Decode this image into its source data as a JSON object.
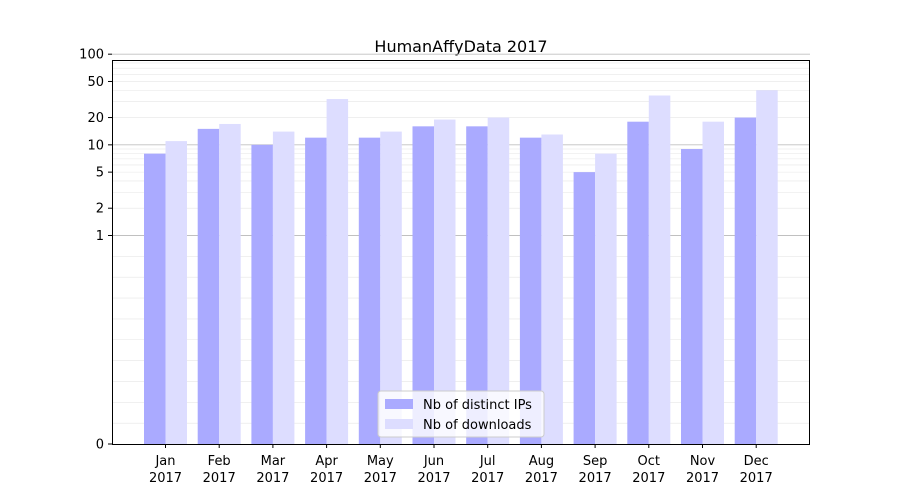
{
  "chart_data": {
    "type": "bar",
    "title": "HumanAffyData 2017",
    "xlabel": "",
    "ylabel": "",
    "yscale": "symlog",
    "ylim": [
      0,
      130
    ],
    "yticks": [
      0,
      1,
      2,
      5,
      10,
      20,
      50,
      100
    ],
    "categories": [
      [
        "Jan",
        "2017"
      ],
      [
        "Feb",
        "2017"
      ],
      [
        "Mar",
        "2017"
      ],
      [
        "Apr",
        "2017"
      ],
      [
        "May",
        "2017"
      ],
      [
        "Jun",
        "2017"
      ],
      [
        "Jul",
        "2017"
      ],
      [
        "Aug",
        "2017"
      ],
      [
        "Sep",
        "2017"
      ],
      [
        "Oct",
        "2017"
      ],
      [
        "Nov",
        "2017"
      ],
      [
        "Dec",
        "2017"
      ]
    ],
    "series": [
      {
        "name": "Nb of distinct IPs",
        "color": "#aaaaff",
        "values": [
          8,
          15,
          10,
          12,
          12,
          16,
          16,
          12,
          5,
          18,
          9,
          20
        ]
      },
      {
        "name": "Nb of downloads",
        "color": "#ddddff",
        "values": [
          11,
          17,
          14,
          32,
          14,
          19,
          20,
          13,
          8,
          35,
          18,
          40
        ]
      }
    ],
    "legend": {
      "position": "lower-center"
    },
    "grid": true
  }
}
